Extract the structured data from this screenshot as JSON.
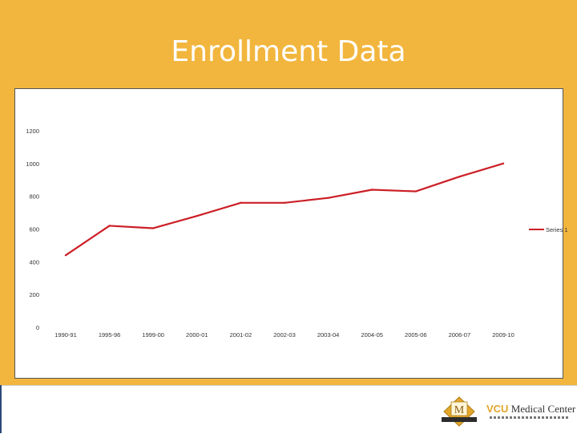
{
  "slide": {
    "title": "Enrollment Data"
  },
  "footer": {
    "vcu_brand": "VCU",
    "medical_center": "Medical Center"
  },
  "colors": {
    "background": "#f2b63e",
    "series_line": "#cc1f26",
    "footer_accent": "#2c4a7a"
  },
  "chart_data": {
    "type": "line",
    "title": "",
    "xlabel": "",
    "ylabel": "",
    "categories": [
      "1990-91",
      "1995-96",
      "1999-00",
      "2000-01",
      "2001-02",
      "2002-03",
      "2003-04",
      "2004-05",
      "2005-06",
      "2006-07",
      "2009-10"
    ],
    "series": [
      {
        "name": "Series 1",
        "values": [
          440,
          620,
          605,
          680,
          760,
          760,
          790,
          840,
          830,
          920,
          1000
        ]
      }
    ],
    "yticks": [
      0,
      200,
      400,
      600,
      800,
      1000,
      1200
    ],
    "ylim": [
      0,
      1200
    ],
    "grid": false,
    "legend": "right"
  }
}
